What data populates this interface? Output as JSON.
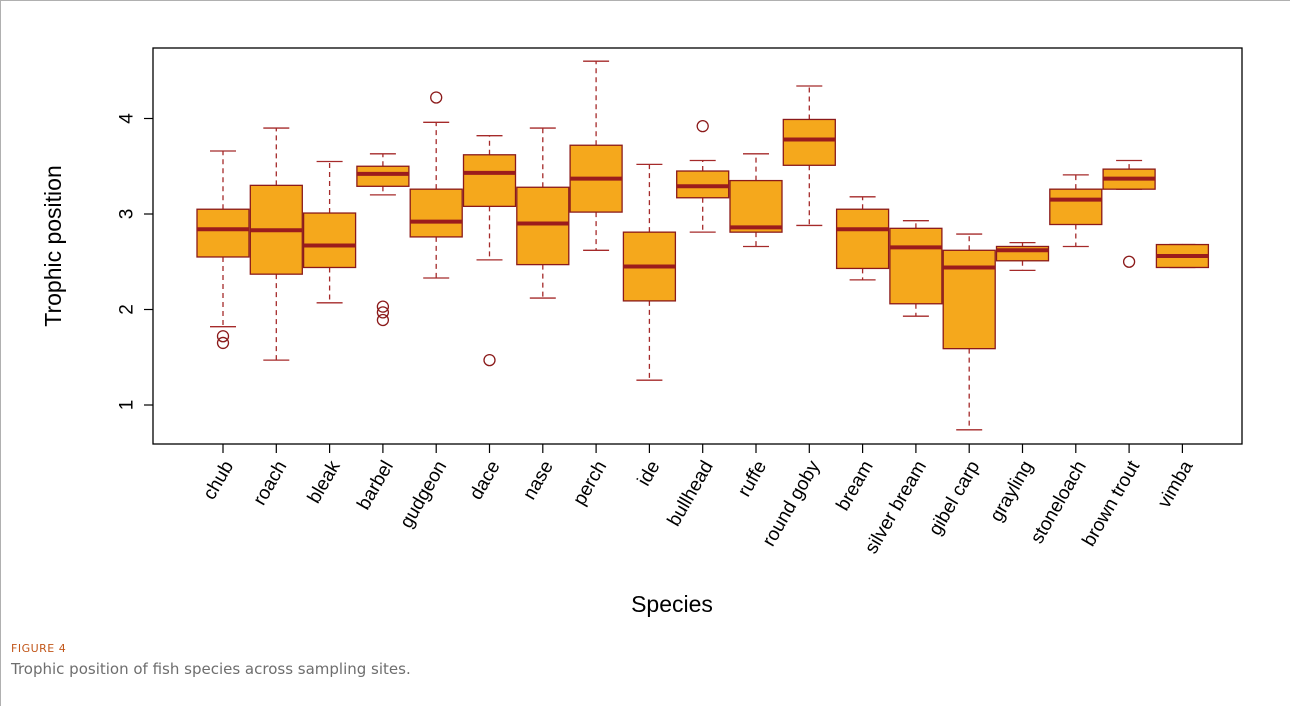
{
  "figure": {
    "label": "FIGURE 4",
    "caption": "Trophic position of fish species across sampling sites."
  },
  "colors": {
    "box_fill": "#f5a81c",
    "box_stroke": "#8b1a1a",
    "median": "#9b1c1c",
    "whisker": "#a52a2a"
  },
  "chart_data": {
    "type": "box",
    "xlabel": "Species",
    "ylabel": "Trophic position",
    "ylim": [
      0.6,
      4.7
    ],
    "yticks": [
      1,
      2,
      3,
      4
    ],
    "grid": false,
    "categories": [
      "chub",
      "roach",
      "bleak",
      "barbel",
      "gudgeon",
      "dace",
      "nase",
      "perch",
      "ide",
      "bullhead",
      "ruffe",
      "round goby",
      "bream",
      "silver bream",
      "gibel carp",
      "grayling",
      "stoneloach",
      "brown trout",
      "vimba"
    ],
    "boxes": [
      {
        "min": 1.82,
        "q1": 2.55,
        "median": 2.84,
        "q3": 3.05,
        "max": 3.66,
        "outliers": [
          1.72,
          1.65
        ]
      },
      {
        "min": 1.47,
        "q1": 2.37,
        "median": 2.83,
        "q3": 3.3,
        "max": 3.9,
        "outliers": []
      },
      {
        "min": 2.07,
        "q1": 2.44,
        "median": 2.67,
        "q3": 3.01,
        "max": 3.55,
        "outliers": []
      },
      {
        "min": 3.2,
        "q1": 3.29,
        "median": 3.42,
        "q3": 3.5,
        "max": 3.63,
        "outliers": [
          2.03,
          1.97,
          1.89
        ]
      },
      {
        "min": 2.33,
        "q1": 2.76,
        "median": 2.92,
        "q3": 3.26,
        "max": 3.96,
        "outliers": [
          4.22
        ]
      },
      {
        "min": 2.52,
        "q1": 3.08,
        "median": 3.43,
        "q3": 3.62,
        "max": 3.82,
        "outliers": [
          1.47
        ]
      },
      {
        "min": 2.12,
        "q1": 2.47,
        "median": 2.9,
        "q3": 3.28,
        "max": 3.9,
        "outliers": []
      },
      {
        "min": 2.62,
        "q1": 3.02,
        "median": 3.37,
        "q3": 3.72,
        "max": 4.6,
        "outliers": []
      },
      {
        "min": 1.26,
        "q1": 2.09,
        "median": 2.45,
        "q3": 2.81,
        "max": 3.52,
        "outliers": []
      },
      {
        "min": 2.81,
        "q1": 3.17,
        "median": 3.29,
        "q3": 3.45,
        "max": 3.56,
        "outliers": [
          3.92
        ]
      },
      {
        "min": 2.66,
        "q1": 2.81,
        "median": 2.86,
        "q3": 3.35,
        "max": 3.63,
        "outliers": []
      },
      {
        "min": 2.88,
        "q1": 3.51,
        "median": 3.78,
        "q3": 3.99,
        "max": 4.34,
        "outliers": []
      },
      {
        "min": 2.31,
        "q1": 2.43,
        "median": 2.84,
        "q3": 3.05,
        "max": 3.18,
        "outliers": []
      },
      {
        "min": 1.93,
        "q1": 2.06,
        "median": 2.65,
        "q3": 2.85,
        "max": 2.93,
        "outliers": []
      },
      {
        "min": 0.74,
        "q1": 1.59,
        "median": 2.44,
        "q3": 2.62,
        "max": 2.79,
        "outliers": []
      },
      {
        "min": 2.41,
        "q1": 2.51,
        "median": 2.62,
        "q3": 2.66,
        "max": 2.7,
        "outliers": []
      },
      {
        "min": 2.66,
        "q1": 2.89,
        "median": 3.15,
        "q3": 3.26,
        "max": 3.41,
        "outliers": []
      },
      {
        "min": 3.26,
        "q1": 3.26,
        "median": 3.37,
        "q3": 3.47,
        "max": 3.56,
        "outliers": [
          2.5
        ]
      },
      {
        "min": 2.44,
        "q1": 2.44,
        "median": 2.56,
        "q3": 2.68,
        "max": 2.68,
        "outliers": []
      }
    ]
  }
}
